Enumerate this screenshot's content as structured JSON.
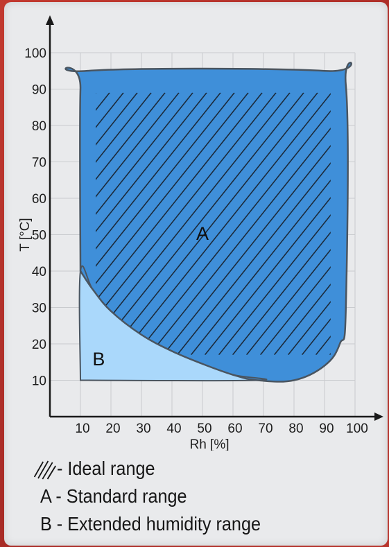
{
  "chart_data": {
    "type": "area",
    "xlabel": "Rh [%]",
    "ylabel": "T [°C]",
    "xlim": [
      0,
      100
    ],
    "ylim": [
      0,
      100
    ],
    "x_ticks": [
      "10",
      "20",
      "30",
      "40",
      "50",
      "60",
      "70",
      "80",
      "90",
      "100"
    ],
    "y_ticks": [
      "10",
      "20",
      "30",
      "40",
      "50",
      "60",
      "70",
      "80",
      "90",
      "100"
    ],
    "grid": true,
    "regions": [
      {
        "name": "A",
        "label": "A",
        "description": "Standard range",
        "color": "#3f8fd9",
        "outline": [
          [
            10,
            40
          ],
          [
            10,
            90
          ],
          [
            12,
            95
          ],
          [
            90,
            95
          ],
          [
            97,
            91
          ],
          [
            97,
            30
          ],
          [
            95,
            20
          ],
          [
            90,
            14
          ],
          [
            80,
            10
          ],
          [
            68,
            10
          ],
          [
            60,
            11.5
          ],
          [
            50,
            14.5
          ],
          [
            40,
            18
          ],
          [
            30,
            22.5
          ],
          [
            20,
            29
          ],
          [
            14,
            35
          ],
          [
            10,
            40
          ]
        ]
      },
      {
        "name": "B",
        "label": "B",
        "description": "Extended humidity range",
        "color": "#aad8fb",
        "outline": [
          [
            10,
            10
          ],
          [
            10,
            40
          ],
          [
            14,
            35
          ],
          [
            20,
            29
          ],
          [
            30,
            22.5
          ],
          [
            40,
            18
          ],
          [
            50,
            14.5
          ],
          [
            60,
            11.5
          ],
          [
            68,
            10
          ],
          [
            10,
            10
          ]
        ]
      }
    ],
    "hatch": {
      "name": "Ideal range",
      "x_range": [
        15,
        92
      ],
      "y_range": [
        17,
        89
      ]
    }
  },
  "legend": [
    {
      "symbol": "hatch",
      "text": "- Ideal range"
    },
    {
      "symbol": "",
      "text": "A - Standard range"
    },
    {
      "symbol": "",
      "text": "B - Extended humidity range"
    }
  ],
  "colors": {
    "region_a": "#3f8fd9",
    "region_b": "#aad8fb",
    "outline": "#4a5560",
    "grid": "#c9cbce",
    "background": "#e9eaec",
    "frame": "#b4322c"
  }
}
